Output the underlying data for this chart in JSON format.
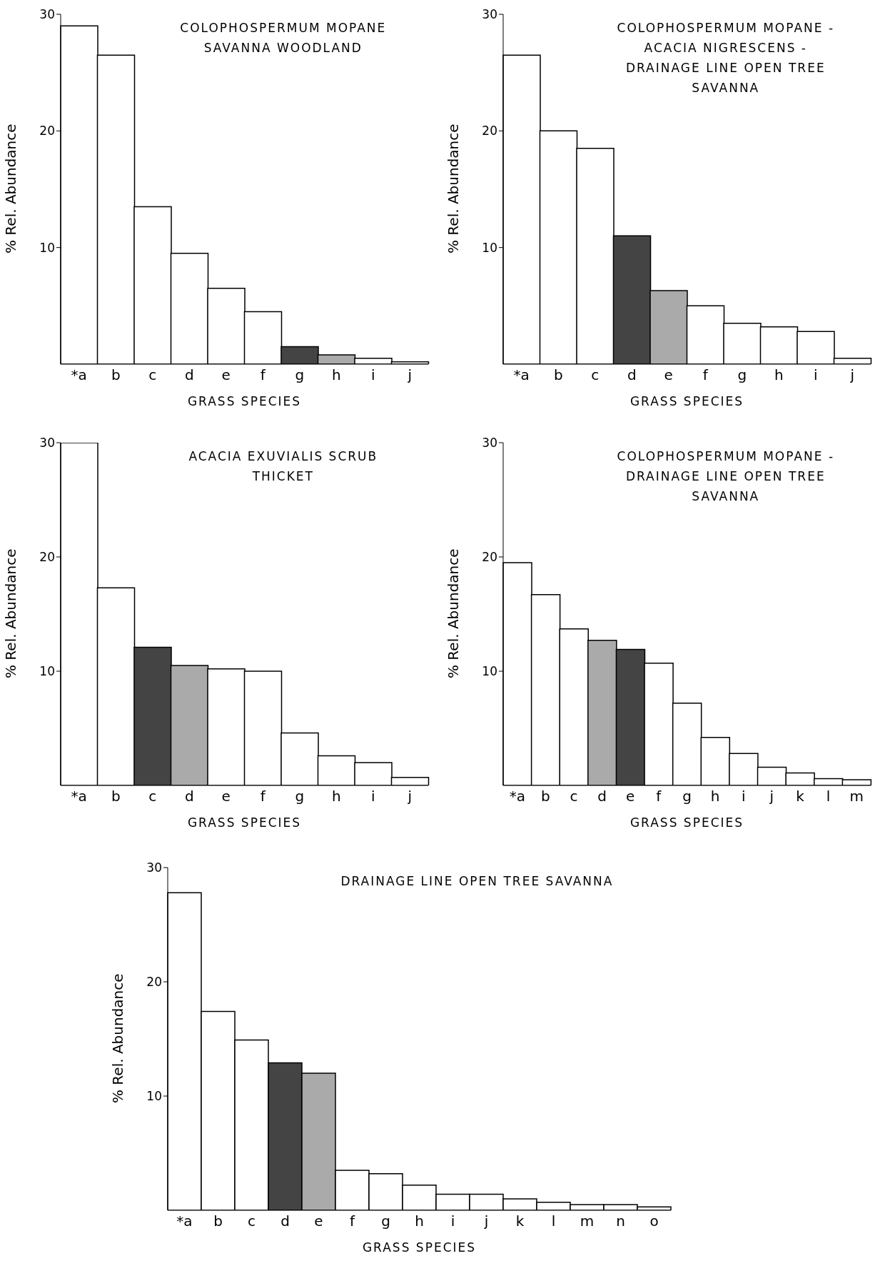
{
  "chart_data": [
    {
      "type": "bar",
      "title": "COLOPHOSPERMUM MOPANE SAVANNA WOODLAND",
      "xlabel": "GRASS SPECIES",
      "ylabel": "% Rel. Abundance",
      "categories": [
        "*a",
        "b",
        "c",
        "d",
        "e",
        "f",
        "g",
        "h",
        "i",
        "j"
      ],
      "values": [
        29,
        26.5,
        13.5,
        9.5,
        6.5,
        4.5,
        1.5,
        0.8,
        0.5,
        0.2
      ],
      "colors": [
        "#ffffff",
        "#ffffff",
        "#ffffff",
        "#ffffff",
        "#ffffff",
        "#ffffff",
        "#444444",
        "#aaaaaa",
        "#ffffff",
        "#ffffff"
      ],
      "ylim": [
        0,
        30
      ],
      "yticks": [
        10,
        20,
        30
      ]
    },
    {
      "type": "bar",
      "title": "COLOPHOSPERMUM MOPANE - ACACIA NIGRESCENS - DRAINAGE LINE OPEN TREE SAVANNA",
      "xlabel": "GRASS SPECIES",
      "ylabel": "% Rel. Abundance",
      "categories": [
        "*a",
        "b",
        "c",
        "d",
        "e",
        "f",
        "g",
        "h",
        "i",
        "j"
      ],
      "values": [
        26.5,
        20,
        18.5,
        11,
        6.3,
        5,
        3.5,
        3.2,
        2.8,
        0.5
      ],
      "colors": [
        "#ffffff",
        "#ffffff",
        "#ffffff",
        "#444444",
        "#aaaaaa",
        "#ffffff",
        "#ffffff",
        "#ffffff",
        "#ffffff",
        "#ffffff"
      ],
      "ylim": [
        0,
        30
      ],
      "yticks": [
        10,
        20,
        30
      ]
    },
    {
      "type": "bar",
      "title": "ACACIA EXUVIALIS SCRUB THICKET",
      "xlabel": "GRASS SPECIES",
      "ylabel": "% Rel. Abundance",
      "categories": [
        "*a",
        "b",
        "c",
        "d",
        "e",
        "f",
        "g",
        "h",
        "i",
        "j"
      ],
      "values": [
        30,
        17.3,
        12.1,
        10.5,
        10.2,
        10,
        4.6,
        2.6,
        2,
        0.7
      ],
      "colors": [
        "#ffffff",
        "#ffffff",
        "#444444",
        "#aaaaaa",
        "#ffffff",
        "#ffffff",
        "#ffffff",
        "#ffffff",
        "#ffffff",
        "#ffffff"
      ],
      "ylim": [
        0,
        30
      ],
      "yticks": [
        10,
        20,
        30
      ]
    },
    {
      "type": "bar",
      "title": "COLOPHOSPERMUM MOPANE - DRAINAGE LINE OPEN TREE SAVANNA",
      "xlabel": "GRASS SPECIES",
      "ylabel": "% Rel. Abundance",
      "categories": [
        "*a",
        "b",
        "c",
        "d",
        "e",
        "f",
        "g",
        "h",
        "i",
        "j",
        "k",
        "l",
        "m"
      ],
      "values": [
        19.5,
        16.7,
        13.7,
        12.7,
        11.9,
        10.7,
        7.2,
        4.2,
        2.8,
        1.6,
        1.1,
        0.6,
        0.5
      ],
      "colors": [
        "#ffffff",
        "#ffffff",
        "#ffffff",
        "#aaaaaa",
        "#444444",
        "#ffffff",
        "#ffffff",
        "#ffffff",
        "#ffffff",
        "#ffffff",
        "#ffffff",
        "#ffffff",
        "#ffffff"
      ],
      "ylim": [
        0,
        30
      ],
      "yticks": [
        10,
        20,
        30
      ]
    },
    {
      "type": "bar",
      "title": "DRAINAGE LINE OPEN TREE SAVANNA",
      "xlabel": "GRASS SPECIES",
      "ylabel": "% Rel. Abundance",
      "categories": [
        "*a",
        "b",
        "c",
        "d",
        "e",
        "f",
        "g",
        "h",
        "i",
        "j",
        "k",
        "l",
        "m",
        "n",
        "o"
      ],
      "values": [
        27.8,
        17.4,
        14.9,
        12.9,
        12,
        3.5,
        3.2,
        2.2,
        1.4,
        1.4,
        1,
        0.7,
        0.5,
        0.5,
        0.3
      ],
      "colors": [
        "#ffffff",
        "#ffffff",
        "#ffffff",
        "#444444",
        "#aaaaaa",
        "#ffffff",
        "#ffffff",
        "#ffffff",
        "#ffffff",
        "#ffffff",
        "#ffffff",
        "#ffffff",
        "#ffffff",
        "#ffffff",
        "#ffffff"
      ],
      "ylim": [
        0,
        30
      ],
      "yticks": [
        10,
        20,
        30
      ]
    }
  ]
}
